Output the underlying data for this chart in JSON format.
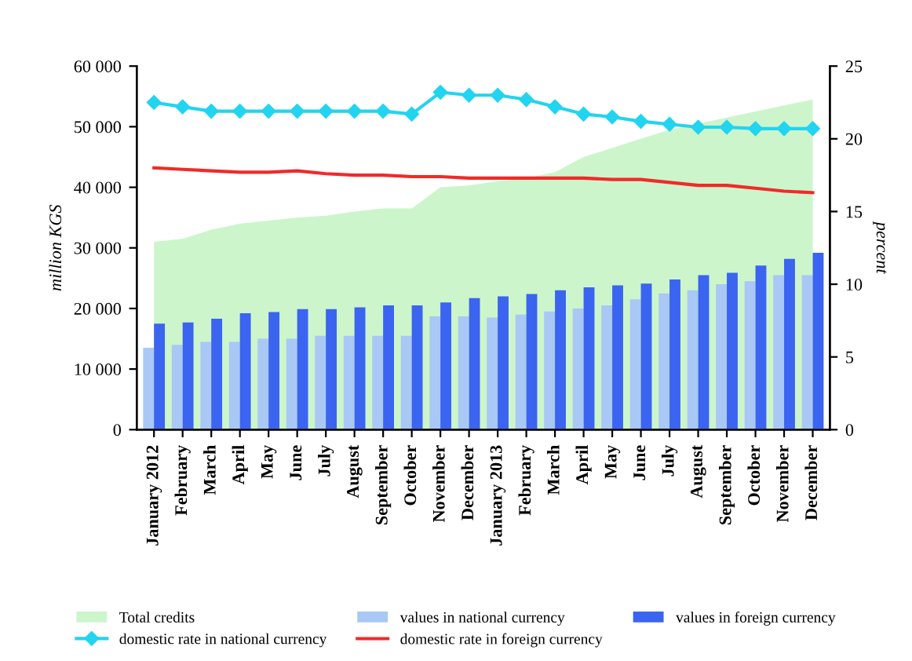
{
  "chart_data": {
    "type": "bar",
    "ylabel": "million KGS",
    "y2label": "percent",
    "categories": [
      "January 2012",
      "February",
      "March",
      "April",
      "May",
      "June",
      "July",
      "August",
      "September",
      "October",
      "November",
      "December",
      "January 2013",
      "February",
      "March",
      "April",
      "May",
      "June",
      "July",
      "August",
      "September",
      "October",
      "November",
      "December"
    ],
    "series": [
      {
        "name": "Total credits",
        "type": "area",
        "color": "#ccf5cc",
        "values": [
          31000,
          31500,
          33000,
          34000,
          34500,
          35000,
          35300,
          36000,
          36500,
          36500,
          40000,
          40300,
          41000,
          41500,
          42500,
          45000,
          46500,
          48000,
          49500,
          50500,
          51500,
          52500,
          53500,
          54500
        ]
      },
      {
        "name": "values in national currency",
        "color": "#a9c8f5",
        "values": [
          13500,
          14000,
          14500,
          14500,
          15000,
          15000,
          15500,
          15500,
          15500,
          15500,
          18700,
          18700,
          18500,
          19000,
          19500,
          20000,
          20500,
          21500,
          22500,
          23000,
          24000,
          24500,
          25500,
          25500
        ]
      },
      {
        "name": "values in foreign currency",
        "color": "#3b64f0",
        "values": [
          17500,
          17700,
          18300,
          19200,
          19400,
          19900,
          19900,
          20200,
          20500,
          20500,
          21000,
          21700,
          22000,
          22400,
          23000,
          23500,
          23800,
          24100,
          24800,
          25500,
          25900,
          27100,
          28200,
          29200
        ]
      },
      {
        "name": "domestic rate in national currency",
        "type": "line",
        "axis": "y2",
        "color": "#22d4f0",
        "marker": "diamond",
        "values": [
          22.5,
          22.2,
          21.9,
          21.9,
          21.9,
          21.9,
          21.9,
          21.9,
          21.9,
          21.7,
          23.2,
          23.0,
          23.0,
          22.7,
          22.2,
          21.7,
          21.5,
          21.2,
          21.0,
          20.8,
          20.8,
          20.7,
          20.7,
          20.7
        ]
      },
      {
        "name": "domestic rate in foreign currency",
        "type": "line",
        "axis": "y2",
        "color": "#f02a2a",
        "values": [
          18.0,
          17.9,
          17.8,
          17.7,
          17.7,
          17.8,
          17.6,
          17.5,
          17.5,
          17.4,
          17.4,
          17.3,
          17.3,
          17.3,
          17.3,
          17.3,
          17.2,
          17.2,
          17.0,
          16.8,
          16.8,
          16.6,
          16.4,
          16.3
        ]
      }
    ],
    "ylim": [
      0,
      60000
    ],
    "yticks": [
      0,
      {
        "value": 10000,
        "label": "10 000"
      },
      {
        "value": 20000,
        "label": "20 000"
      },
      {
        "value": 30000,
        "label": "30 000"
      },
      {
        "value": 40000,
        "label": "40 000"
      },
      {
        "value": 50000,
        "label": "50 000"
      },
      {
        "value": 60000,
        "label": "60 000"
      }
    ],
    "y2lim": [
      0,
      25
    ],
    "y2ticks": [
      0,
      5,
      10,
      15,
      20,
      25
    ],
    "grid": false,
    "legend": "bottom"
  }
}
